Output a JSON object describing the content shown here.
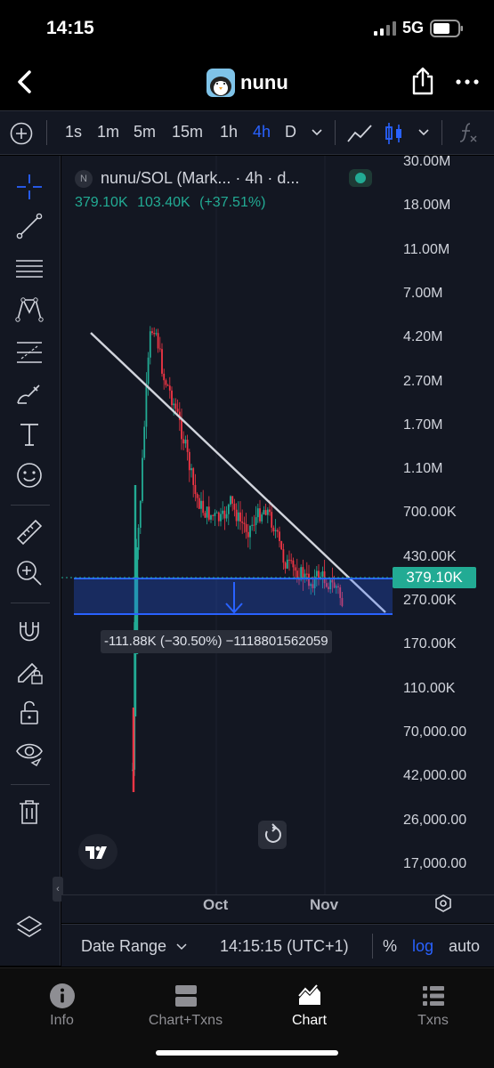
{
  "status": {
    "time": "14:15",
    "network": "5G"
  },
  "nav": {
    "title": "nunu"
  },
  "toolbar": {
    "timeframes": [
      "1s",
      "1m",
      "5m",
      "15m",
      "1h",
      "4h",
      "D"
    ],
    "active_timeframe": "4h"
  },
  "legend": {
    "title": "nunu/SOL (Mark...  · 4h · d...",
    "icon_letter": "N",
    "price": "379.10K",
    "change": "103.40K",
    "change_pct": "(+37.51%)"
  },
  "price_axis": {
    "ticks": [
      "30.00M",
      "18.00M",
      "11.00M",
      "7.00M",
      "4.20M",
      "2.70M",
      "1.70M",
      "1.10M",
      "700.00K",
      "430.00K",
      "270.00K",
      "170.00K",
      "110.00K",
      "70,000.00",
      "42,000.00",
      "26,000.00",
      "17,000.00"
    ],
    "current_price": "379.10K"
  },
  "measure": {
    "label": "-111.88K (−30.50%) −1118801562059"
  },
  "time_axis": {
    "ticks": [
      "Oct",
      "Nov"
    ]
  },
  "footer": {
    "date_range": "Date Range",
    "clock": "14:15:15 (UTC+1)",
    "percent": "%",
    "log": "log",
    "auto": "auto"
  },
  "tabs": [
    {
      "label": "Info",
      "icon": "info-icon"
    },
    {
      "label": "Chart+Txns",
      "icon": "split-icon"
    },
    {
      "label": "Chart",
      "icon": "chart-icon",
      "active": true
    },
    {
      "label": "Txns",
      "icon": "list-icon"
    }
  ],
  "colors": {
    "up": "#22ab94",
    "down": "#f23645",
    "accent": "#2962ff",
    "panel": "#131722"
  }
}
